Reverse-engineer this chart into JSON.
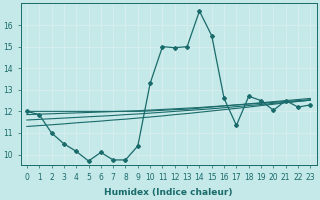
{
  "title": "",
  "xlabel": "Humidex (Indice chaleur)",
  "ylabel": "",
  "bg_color": "#c5e8e8",
  "grid_color": "#d8eded",
  "line_color": "#1a6b6b",
  "x": [
    0,
    1,
    2,
    3,
    4,
    5,
    6,
    7,
    8,
    9,
    10,
    11,
    12,
    13,
    14,
    15,
    16,
    17,
    18,
    19,
    20,
    21,
    22,
    23
  ],
  "y_main": [
    12.0,
    11.85,
    11.0,
    10.5,
    10.15,
    9.7,
    10.1,
    9.75,
    9.75,
    10.4,
    13.3,
    15.0,
    14.95,
    15.0,
    16.65,
    15.5,
    12.6,
    11.35,
    12.7,
    12.5,
    12.05,
    12.5,
    12.2,
    12.3
  ],
  "y_line1": [
    12.0,
    12.0,
    12.0,
    12.0,
    12.0,
    12.0,
    12.0,
    12.0,
    12.0,
    12.0,
    12.02,
    12.05,
    12.08,
    12.1,
    12.15,
    12.2,
    12.25,
    12.3,
    12.35,
    12.4,
    12.45,
    12.5,
    12.55,
    12.6
  ],
  "y_line2": [
    11.85,
    11.87,
    11.89,
    11.91,
    11.93,
    11.95,
    11.97,
    11.99,
    12.01,
    12.03,
    12.06,
    12.09,
    12.12,
    12.15,
    12.18,
    12.22,
    12.26,
    12.3,
    12.34,
    12.38,
    12.42,
    12.46,
    12.5,
    12.54
  ],
  "y_line3": [
    11.6,
    11.63,
    11.66,
    11.69,
    11.72,
    11.75,
    11.78,
    11.81,
    11.85,
    11.88,
    11.92,
    11.96,
    12.0,
    12.04,
    12.08,
    12.12,
    12.17,
    12.22,
    12.27,
    12.32,
    12.37,
    12.42,
    12.47,
    12.52
  ],
  "y_line4": [
    11.3,
    11.34,
    11.38,
    11.42,
    11.47,
    11.51,
    11.55,
    11.6,
    11.64,
    11.69,
    11.74,
    11.79,
    11.85,
    11.9,
    11.96,
    12.02,
    12.08,
    12.14,
    12.2,
    12.27,
    12.33,
    12.4,
    12.46,
    12.52
  ],
  "ylim": [
    9.5,
    17.0
  ],
  "yticks": [
    10,
    11,
    12,
    13,
    14,
    15,
    16
  ],
  "xticks": [
    0,
    1,
    2,
    3,
    4,
    5,
    6,
    7,
    8,
    9,
    10,
    11,
    12,
    13,
    14,
    15,
    16,
    17,
    18,
    19,
    20,
    21,
    22,
    23
  ],
  "tick_fontsize": 5.5,
  "xlabel_fontsize": 6.5
}
